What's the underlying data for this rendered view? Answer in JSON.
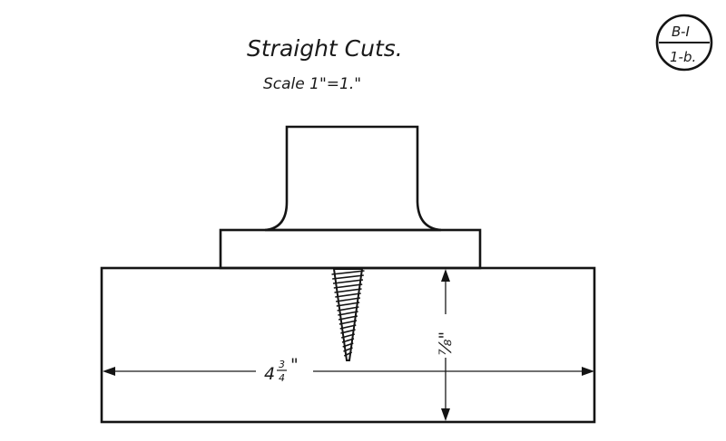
{
  "title": "Straight Cuts.",
  "scale": "Scale 1\"=1.\"",
  "plate_badge": {
    "top": "B-I",
    "bottom": "1-b."
  },
  "dimensions": {
    "width_label": "4¾\"",
    "width_whole": "4",
    "width_fraction_numerator": "3",
    "width_fraction_denominator": "4",
    "width_inch_mark": "\"",
    "thickness_label": "⅞\"",
    "thickness_fraction": "7⁄8",
    "thickness_inch_mark": "\""
  }
}
